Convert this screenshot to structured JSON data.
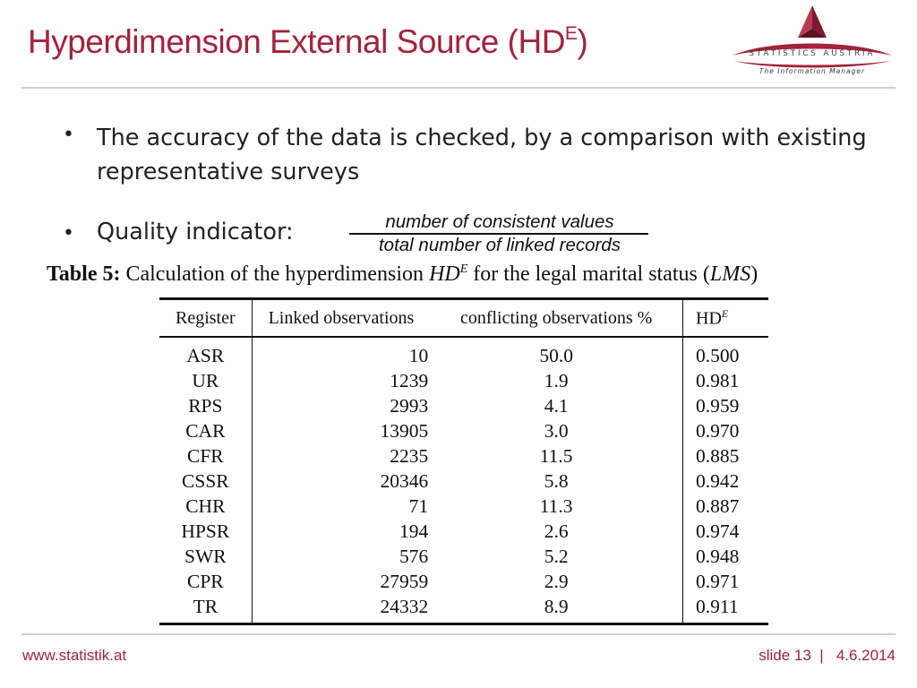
{
  "header": {
    "title": "Hyperdimension External Source (HD",
    "title_sup": "E",
    "title_end": ")"
  },
  "logo": {
    "name": "STATISTICS AUSTRIA",
    "tagline": "The Information Manager",
    "color": "#a5223d"
  },
  "bullets": [
    {
      "text": "The accuracy of the data is checked, by a comparison with existing representative surveys"
    },
    {
      "text": "Quality indicator:"
    }
  ],
  "formula": {
    "numerator": "number of consistent values",
    "denominator": "total number of linked records"
  },
  "table": {
    "caption_label": "Table 5:",
    "caption_pre": " Calculation of the hyperdimension ",
    "caption_hd": "HD",
    "caption_hd_sup": "E",
    "caption_post": " for the legal marital status (",
    "caption_lms": "LMS",
    "caption_end": ")",
    "columns": [
      "Register",
      "Linked observations",
      "conflicting observations %",
      "HD",
      "E"
    ],
    "rows": [
      [
        "ASR",
        "10",
        "50.0",
        "0.500"
      ],
      [
        "UR",
        "1239",
        "1.9",
        "0.981"
      ],
      [
        "RPS",
        "2993",
        "4.1",
        "0.959"
      ],
      [
        "CAR",
        "13905",
        "3.0",
        "0.970"
      ],
      [
        "CFR",
        "2235",
        "11.5",
        "0.885"
      ],
      [
        "CSSR",
        "20346",
        "5.8",
        "0.942"
      ],
      [
        "CHR",
        "71",
        "11.3",
        "0.887"
      ],
      [
        "HPSR",
        "194",
        "2.6",
        "0.974"
      ],
      [
        "SWR",
        "576",
        "5.2",
        "0.948"
      ],
      [
        "CPR",
        "27959",
        "2.9",
        "0.971"
      ],
      [
        "TR",
        "24332",
        "8.9",
        "0.911"
      ]
    ]
  },
  "footer": {
    "url": "www.statistik.at",
    "slide": "slide 13  |   4.6.2014"
  },
  "colors": {
    "accent": "#a5223d",
    "rule": "#c5d3e5"
  }
}
